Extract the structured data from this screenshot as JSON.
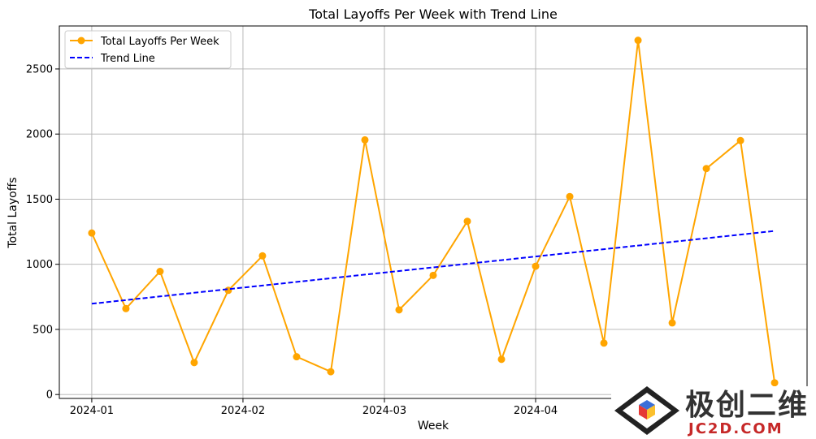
{
  "chart_data": {
    "type": "line",
    "title": "Total Layoffs Per Week with Trend Line",
    "xlabel": "Week",
    "ylabel": "Total Layoffs",
    "x_ticks": [
      "2024-01",
      "2024-02",
      "2024-03",
      "2024-04"
    ],
    "y_ticks": [
      "0",
      "500",
      "1000",
      "1500",
      "2000",
      "2500"
    ],
    "ylim": [
      -30,
      2830
    ],
    "grid": true,
    "legend_position": "top-left",
    "x": [
      "2024-01-01",
      "2024-01-08",
      "2024-01-15",
      "2024-01-22",
      "2024-01-29",
      "2024-02-05",
      "2024-02-12",
      "2024-02-19",
      "2024-02-26",
      "2024-03-04",
      "2024-03-11",
      "2024-03-18",
      "2024-03-25",
      "2024-04-01",
      "2024-04-08",
      "2024-04-15",
      "2024-04-22",
      "2024-04-29",
      "2024-05-06",
      "2024-05-13",
      "2024-05-20"
    ],
    "series": [
      {
        "name": "Total Layoffs Per Week",
        "color": "#FFA500",
        "style": "solid-with-markers",
        "values": [
          1240,
          660,
          945,
          245,
          800,
          1065,
          290,
          175,
          1955,
          650,
          915,
          1330,
          270,
          985,
          1520,
          395,
          2720,
          550,
          1735,
          1950,
          90
        ]
      },
      {
        "name": "Trend Line",
        "color": "#0000FF",
        "style": "dashed",
        "values": [
          697,
          725,
          753,
          781,
          809,
          837,
          865,
          893,
          921,
          948,
          976,
          1004,
          1032,
          1060,
          1088,
          1116,
          1144,
          1172,
          1200,
          1228,
          1256
        ]
      }
    ]
  },
  "watermark": {
    "title": "极创二维",
    "subtitle": "JC2D.COM"
  }
}
